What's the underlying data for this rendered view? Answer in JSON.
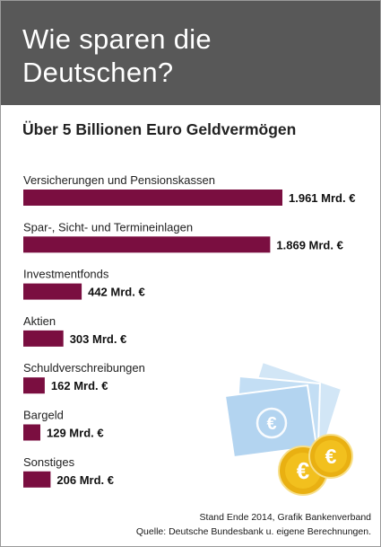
{
  "header": {
    "title": "Wie sparen die Deutschen?"
  },
  "subtitle": "Über 5 Billionen Euro Geldvermögen",
  "chart_data": {
    "type": "bar",
    "orientation": "horizontal",
    "title": "Wie sparen die Deutschen?",
    "subtitle": "Über 5 Billionen Euro Geldvermögen",
    "unit": "Mrd. €",
    "categories": [
      "Versicherungen und Pensionskassen",
      "Spar-, Sicht- und Termineinlagen",
      "Investmentfonds",
      "Aktien",
      "Schuldverschreibungen",
      "Bargeld",
      "Sonstiges"
    ],
    "values": [
      1961,
      1869,
      442,
      303,
      162,
      129,
      206
    ],
    "value_labels": [
      "1.961 Mrd. €",
      "1.869 Mrd. €",
      "442 Mrd. €",
      "303 Mrd. €",
      "162 Mrd. €",
      "129 Mrd. €",
      "206 Mrd. €"
    ],
    "bar_color": "#7a0e40",
    "grid": false,
    "legend": "none"
  },
  "footer": {
    "line1": "Stand Ende 2014, Grafik Bankenverband",
    "line2": "Quelle: Deutsche Bundesbank u. eigene Berechnungen."
  },
  "colors": {
    "header_bg": "#585858",
    "bar": "#7a0e40",
    "banknote": "#b9d8f2",
    "coin": "#f2c01e"
  },
  "illustration": {
    "icon": "euro-banknotes-and-coins-icon"
  }
}
